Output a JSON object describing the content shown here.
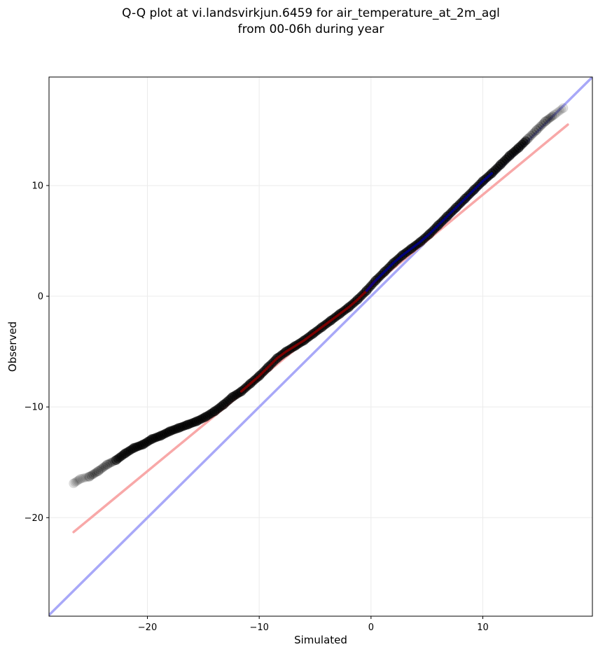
{
  "chart_data": {
    "type": "scatter",
    "title_line1": "Q-Q plot at vi.landsvirkjun.6459 for air_temperature_at_2m_agl",
    "title_line2": "from 00-06h during year",
    "xlabel": "Simulated",
    "ylabel": "Observed",
    "xlim": [
      -28.8,
      19.8
    ],
    "ylim": [
      -28.9,
      19.8
    ],
    "xticks": [
      -20,
      -10,
      0,
      10
    ],
    "yticks": [
      -20,
      -10,
      0,
      10
    ],
    "xtick_labels": [
      "−20",
      "−10",
      "0",
      "10"
    ],
    "ytick_labels": [
      "−20",
      "−10",
      "0",
      "10"
    ],
    "grid": true,
    "quantiles": {
      "x": [
        -26.6,
        -26.0,
        -25.2,
        -24.4,
        -23.6,
        -22.8,
        -22.0,
        -21.2,
        -20.4,
        -19.6,
        -18.8,
        -18.0,
        -17.2,
        -16.4,
        -15.6,
        -14.8,
        -14.0,
        -13.2,
        -12.4,
        -11.6,
        -10.8,
        -10.0,
        -9.2,
        -8.4,
        -7.6,
        -6.8,
        -6.0,
        -5.2,
        -4.4,
        -3.6,
        -2.8,
        -2.0,
        -1.2,
        -0.4,
        0.4,
        1.2,
        2.0,
        2.8,
        3.6,
        4.4,
        5.2,
        6.0,
        6.8,
        7.6,
        8.4,
        9.2,
        10.0,
        10.8,
        11.6,
        12.4,
        13.2,
        14.0,
        14.8,
        15.6,
        16.4,
        17.2
      ],
      "y": [
        -16.9,
        -16.5,
        -16.3,
        -15.8,
        -15.2,
        -14.8,
        -14.2,
        -13.7,
        -13.4,
        -12.9,
        -12.6,
        -12.2,
        -11.9,
        -11.6,
        -11.3,
        -10.9,
        -10.4,
        -9.8,
        -9.1,
        -8.6,
        -7.9,
        -7.2,
        -6.4,
        -5.6,
        -5.0,
        -4.5,
        -4.0,
        -3.4,
        -2.8,
        -2.2,
        -1.6,
        -1.0,
        -0.3,
        0.5,
        1.4,
        2.2,
        3.0,
        3.7,
        4.3,
        4.9,
        5.6,
        6.4,
        7.2,
        8.0,
        8.8,
        9.6,
        10.4,
        11.1,
        11.9,
        12.7,
        13.4,
        14.2,
        15.0,
        15.8,
        16.4,
        17.0
      ]
    },
    "lines": [
      {
        "kind": "identity",
        "color": "#a8a8f8",
        "x": [
          -28.8,
          19.8
        ],
        "y": [
          -28.8,
          19.8
        ]
      },
      {
        "kind": "fit",
        "color": "#f8a8a8",
        "x": [
          -26.6,
          17.6
        ],
        "y": [
          -21.3,
          15.5
        ]
      }
    ],
    "colors": {
      "points": "#000000",
      "central_lower": "#8b0000",
      "central_upper": "#00008b",
      "grid": "#ebebeb"
    }
  }
}
